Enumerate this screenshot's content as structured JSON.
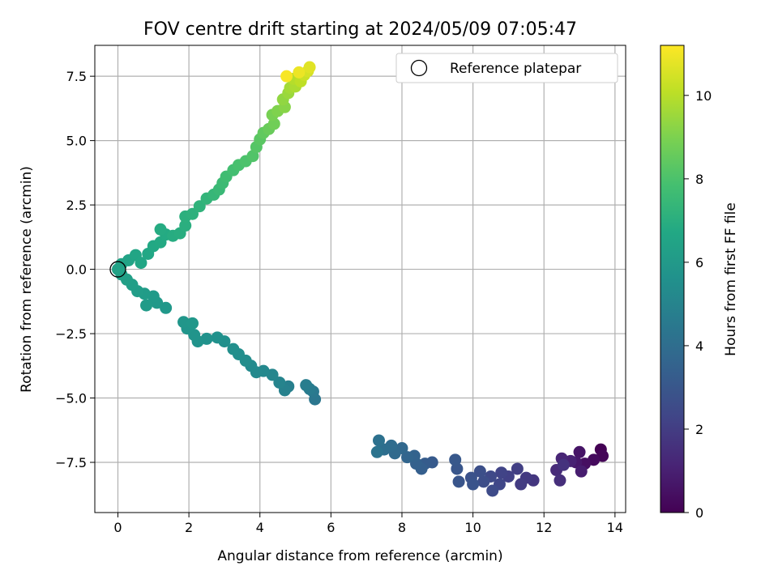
{
  "chart_data": {
    "type": "scatter",
    "title": "FOV centre drift starting at 2024/05/09 07:05:47",
    "xlabel": "Angular distance from reference (arcmin)",
    "ylabel": "Rotation from reference (arcmin)",
    "xlim": [
      -0.65,
      14.3
    ],
    "ylim": [
      -9.45,
      8.7
    ],
    "xticks": [
      0,
      2,
      4,
      6,
      8,
      10,
      12,
      14
    ],
    "yticks": [
      -7.5,
      -5.0,
      -2.5,
      0.0,
      2.5,
      5.0,
      7.5
    ],
    "ytick_labels": [
      "−7.5",
      "−5.0",
      "−2.5",
      "0.0",
      "2.5",
      "5.0",
      "7.5"
    ],
    "grid": true,
    "legend": {
      "placement": "top-right",
      "label": "Reference platepar",
      "marker": "open-circle"
    },
    "reference_point": {
      "x": 0.0,
      "y": 0.0
    },
    "colorbar": {
      "label": "Hours from first FF file",
      "colormap": "viridis",
      "range": [
        0,
        11.2
      ],
      "ticks": [
        0,
        2,
        4,
        6,
        8,
        10
      ]
    },
    "series": [
      {
        "color_by": "hours",
        "points": [
          [
            13.6,
            -7.0,
            0.0
          ],
          [
            13.65,
            -7.25,
            0.15
          ],
          [
            13.4,
            -7.4,
            0.3
          ],
          [
            13.15,
            -7.55,
            0.45
          ],
          [
            13.0,
            -7.1,
            0.6
          ],
          [
            12.9,
            -7.5,
            0.75
          ],
          [
            13.05,
            -7.85,
            0.9
          ],
          [
            12.75,
            -7.45,
            1.05
          ],
          [
            12.5,
            -7.35,
            1.2
          ],
          [
            12.35,
            -7.8,
            1.35
          ],
          [
            12.45,
            -8.2,
            1.5
          ],
          [
            12.55,
            -7.6,
            1.6
          ],
          [
            11.7,
            -8.2,
            1.75
          ],
          [
            11.5,
            -8.1,
            1.85
          ],
          [
            11.35,
            -8.35,
            1.95
          ],
          [
            11.25,
            -7.75,
            2.05
          ],
          [
            11.0,
            -8.05,
            2.15
          ],
          [
            10.8,
            -7.9,
            2.25
          ],
          [
            10.75,
            -8.35,
            2.35
          ],
          [
            10.5,
            -8.05,
            2.45
          ],
          [
            10.55,
            -8.6,
            2.55
          ],
          [
            10.3,
            -8.25,
            2.65
          ],
          [
            10.2,
            -7.85,
            2.7
          ],
          [
            9.95,
            -8.1,
            2.8
          ],
          [
            10.0,
            -8.35,
            2.9
          ],
          [
            9.6,
            -8.25,
            2.95
          ],
          [
            9.55,
            -7.75,
            3.0
          ],
          [
            9.5,
            -7.4,
            3.05
          ],
          [
            8.85,
            -7.5,
            3.15
          ],
          [
            8.65,
            -7.55,
            3.25
          ],
          [
            8.55,
            -7.75,
            3.35
          ],
          [
            8.4,
            -7.55,
            3.45
          ],
          [
            8.35,
            -7.25,
            3.55
          ],
          [
            8.15,
            -7.3,
            3.65
          ],
          [
            8.0,
            -6.95,
            3.75
          ],
          [
            7.8,
            -7.15,
            3.85
          ],
          [
            7.7,
            -6.85,
            3.95
          ],
          [
            7.5,
            -7.0,
            4.05
          ],
          [
            7.35,
            -6.65,
            4.15
          ],
          [
            7.3,
            -7.1,
            4.25
          ],
          [
            5.55,
            -5.05,
            4.4
          ],
          [
            5.5,
            -4.75,
            4.5
          ],
          [
            5.4,
            -4.65,
            4.6
          ],
          [
            5.3,
            -4.5,
            4.7
          ],
          [
            4.8,
            -4.55,
            4.8
          ],
          [
            4.7,
            -4.7,
            4.9
          ],
          [
            4.55,
            -4.4,
            5.0
          ],
          [
            4.35,
            -4.1,
            5.1
          ],
          [
            4.1,
            -3.95,
            5.2
          ],
          [
            3.9,
            -4.0,
            5.25
          ],
          [
            3.75,
            -3.75,
            5.3
          ],
          [
            3.6,
            -3.55,
            5.4
          ],
          [
            3.4,
            -3.3,
            5.45
          ],
          [
            3.25,
            -3.1,
            5.5
          ],
          [
            3.0,
            -2.8,
            5.55
          ],
          [
            2.8,
            -2.65,
            5.6
          ],
          [
            2.5,
            -2.7,
            5.65
          ],
          [
            2.25,
            -2.8,
            5.7
          ],
          [
            2.15,
            -2.55,
            5.75
          ],
          [
            1.95,
            -2.3,
            5.8
          ],
          [
            1.85,
            -2.05,
            5.85
          ],
          [
            2.1,
            -2.1,
            5.9
          ],
          [
            1.35,
            -1.5,
            5.95
          ],
          [
            1.1,
            -1.3,
            6.0
          ],
          [
            1.0,
            -1.05,
            6.05
          ],
          [
            0.8,
            -1.4,
            6.1
          ],
          [
            0.75,
            -0.95,
            6.15
          ],
          [
            0.55,
            -0.85,
            6.2
          ],
          [
            0.4,
            -0.6,
            6.25
          ],
          [
            0.25,
            -0.4,
            6.3
          ],
          [
            0.1,
            -0.2,
            6.35
          ],
          [
            0.0,
            0.0,
            6.4
          ],
          [
            0.1,
            0.2,
            6.45
          ],
          [
            0.3,
            0.35,
            6.5
          ],
          [
            0.5,
            0.55,
            6.55
          ],
          [
            0.65,
            0.25,
            6.6
          ],
          [
            0.85,
            0.6,
            6.65
          ],
          [
            1.0,
            0.9,
            6.7
          ],
          [
            1.2,
            1.05,
            6.75
          ],
          [
            1.35,
            1.35,
            6.8
          ],
          [
            1.2,
            1.55,
            6.85
          ],
          [
            1.55,
            1.3,
            6.9
          ],
          [
            1.75,
            1.4,
            6.95
          ],
          [
            1.9,
            1.7,
            7.0
          ],
          [
            1.9,
            2.05,
            7.05
          ],
          [
            2.1,
            2.15,
            7.1
          ],
          [
            2.3,
            2.45,
            7.2
          ],
          [
            2.5,
            2.75,
            7.3
          ],
          [
            2.7,
            2.9,
            7.4
          ],
          [
            2.85,
            3.1,
            7.5
          ],
          [
            2.95,
            3.35,
            7.6
          ],
          [
            3.05,
            3.6,
            7.7
          ],
          [
            3.25,
            3.85,
            7.8
          ],
          [
            3.4,
            4.05,
            7.9
          ],
          [
            3.6,
            4.2,
            8.0
          ],
          [
            3.8,
            4.4,
            8.1
          ],
          [
            3.9,
            4.75,
            8.2
          ],
          [
            4.0,
            5.05,
            8.3
          ],
          [
            4.1,
            5.3,
            8.45
          ],
          [
            4.25,
            5.45,
            8.6
          ],
          [
            4.4,
            5.65,
            8.75
          ],
          [
            4.35,
            6.0,
            8.9
          ],
          [
            4.5,
            6.15,
            9.05
          ],
          [
            4.7,
            6.3,
            9.2
          ],
          [
            4.65,
            6.6,
            9.35
          ],
          [
            4.8,
            6.85,
            9.5
          ],
          [
            4.85,
            7.05,
            9.65
          ],
          [
            5.0,
            7.1,
            9.8
          ],
          [
            4.95,
            7.4,
            9.95
          ],
          [
            5.15,
            7.3,
            10.1
          ],
          [
            5.25,
            7.55,
            10.3
          ],
          [
            5.35,
            7.7,
            10.5
          ],
          [
            5.4,
            7.85,
            10.7
          ],
          [
            5.1,
            7.65,
            10.9
          ],
          [
            4.75,
            7.5,
            11.1
          ]
        ]
      }
    ]
  }
}
